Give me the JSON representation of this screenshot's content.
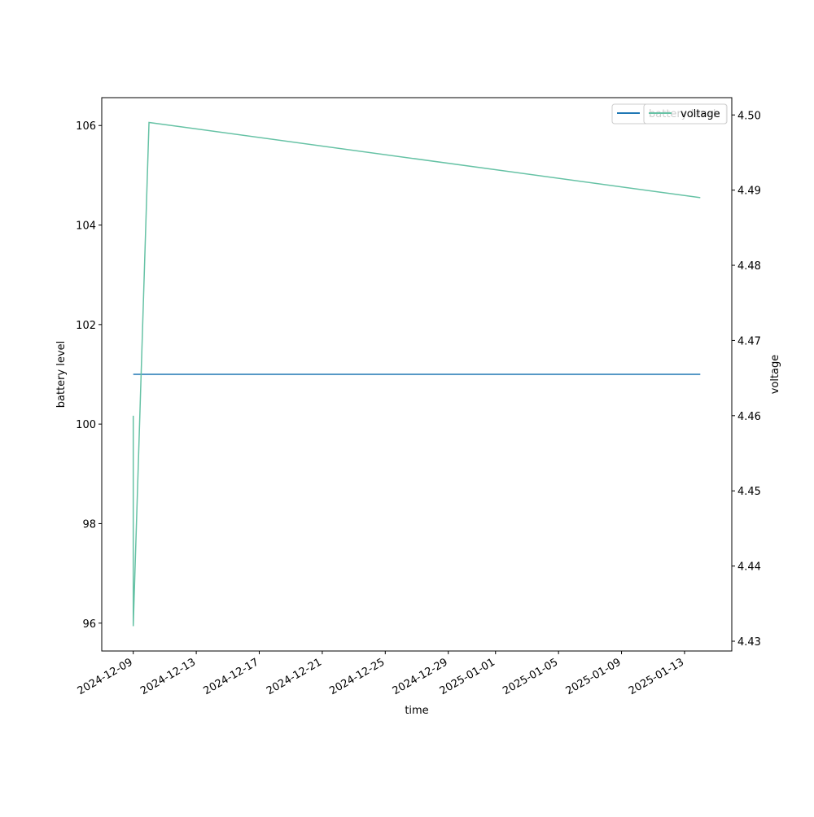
{
  "chart_data": {
    "type": "line",
    "xlabel": "time",
    "ylabel": "battery level",
    "y2label": "voltage",
    "x": [
      "2024-12-09",
      "2024-12-09",
      "2024-12-10",
      "2025-01-14"
    ],
    "xlim": [
      "2024-12-07",
      "2025-01-16"
    ],
    "xticks": [
      "2024-12-09",
      "2024-12-13",
      "2024-12-17",
      "2024-12-21",
      "2024-12-25",
      "2024-12-29",
      "2025-01-01",
      "2025-01-05",
      "2025-01-09",
      "2025-01-13"
    ],
    "ylim": [
      95.44,
      106.56
    ],
    "yticks": [
      96,
      98,
      100,
      102,
      104,
      106
    ],
    "y2lim": [
      4.4287,
      4.5023
    ],
    "y2ticks": [
      4.43,
      4.44,
      4.45,
      4.46,
      4.47,
      4.48,
      4.49,
      {
        "value": 4.5,
        "label": "4.50"
      }
    ],
    "legend": "upper right",
    "series": [
      {
        "name": "battery level",
        "color": "#1f77b4",
        "values": [
          101,
          101,
          101,
          101
        ]
      },
      {
        "name": "voltage",
        "color": "#66c2a5",
        "values": [
          4.46,
          4.432,
          4.499,
          4.489
        ],
        "axis": "y2"
      }
    ]
  }
}
